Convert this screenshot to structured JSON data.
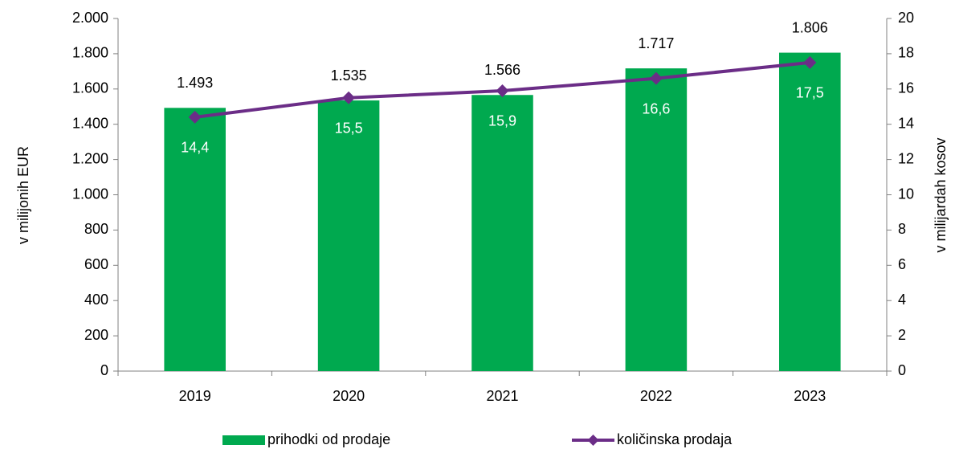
{
  "chart_data": {
    "type": "bar_line",
    "categories": [
      "2019",
      "2020",
      "2021",
      "2022",
      "2023"
    ],
    "ylabel": "v milijonih EUR",
    "y2label": "v milijardah kosov",
    "ylim": [
      0,
      2000
    ],
    "yticks": [
      0,
      200,
      400,
      600,
      800,
      {
        "value": 1000,
        "label": "1.000"
      },
      {
        "value": 1200,
        "label": "1.200"
      },
      {
        "value": 1400,
        "label": "1.400"
      },
      {
        "value": 1600,
        "label": "1.600"
      },
      {
        "value": 1800,
        "label": "1.800"
      },
      {
        "value": 2000,
        "label": "2.000"
      }
    ],
    "y2lim": [
      0,
      20
    ],
    "y2ticks": [
      0,
      2,
      4,
      6,
      8,
      10,
      12,
      14,
      16,
      18,
      20
    ],
    "legend": "bottom",
    "series": [
      {
        "name": "prihodki od prodaje",
        "type": "bar",
        "color": "#00a94f",
        "values": [
          1493,
          1535,
          1566,
          1717,
          1806
        ],
        "value_labels": [
          "1.493",
          "1.535",
          "1.566",
          "1.717",
          "1.806"
        ]
      },
      {
        "name": "količinska prodaja",
        "type": "line",
        "axis": "y2",
        "color": "#6b2d87",
        "values": [
          14.4,
          15.5,
          15.9,
          16.6,
          17.5
        ],
        "value_labels": [
          "14,4",
          "15,5",
          "15,9",
          "16,6",
          "17,5"
        ]
      }
    ]
  }
}
